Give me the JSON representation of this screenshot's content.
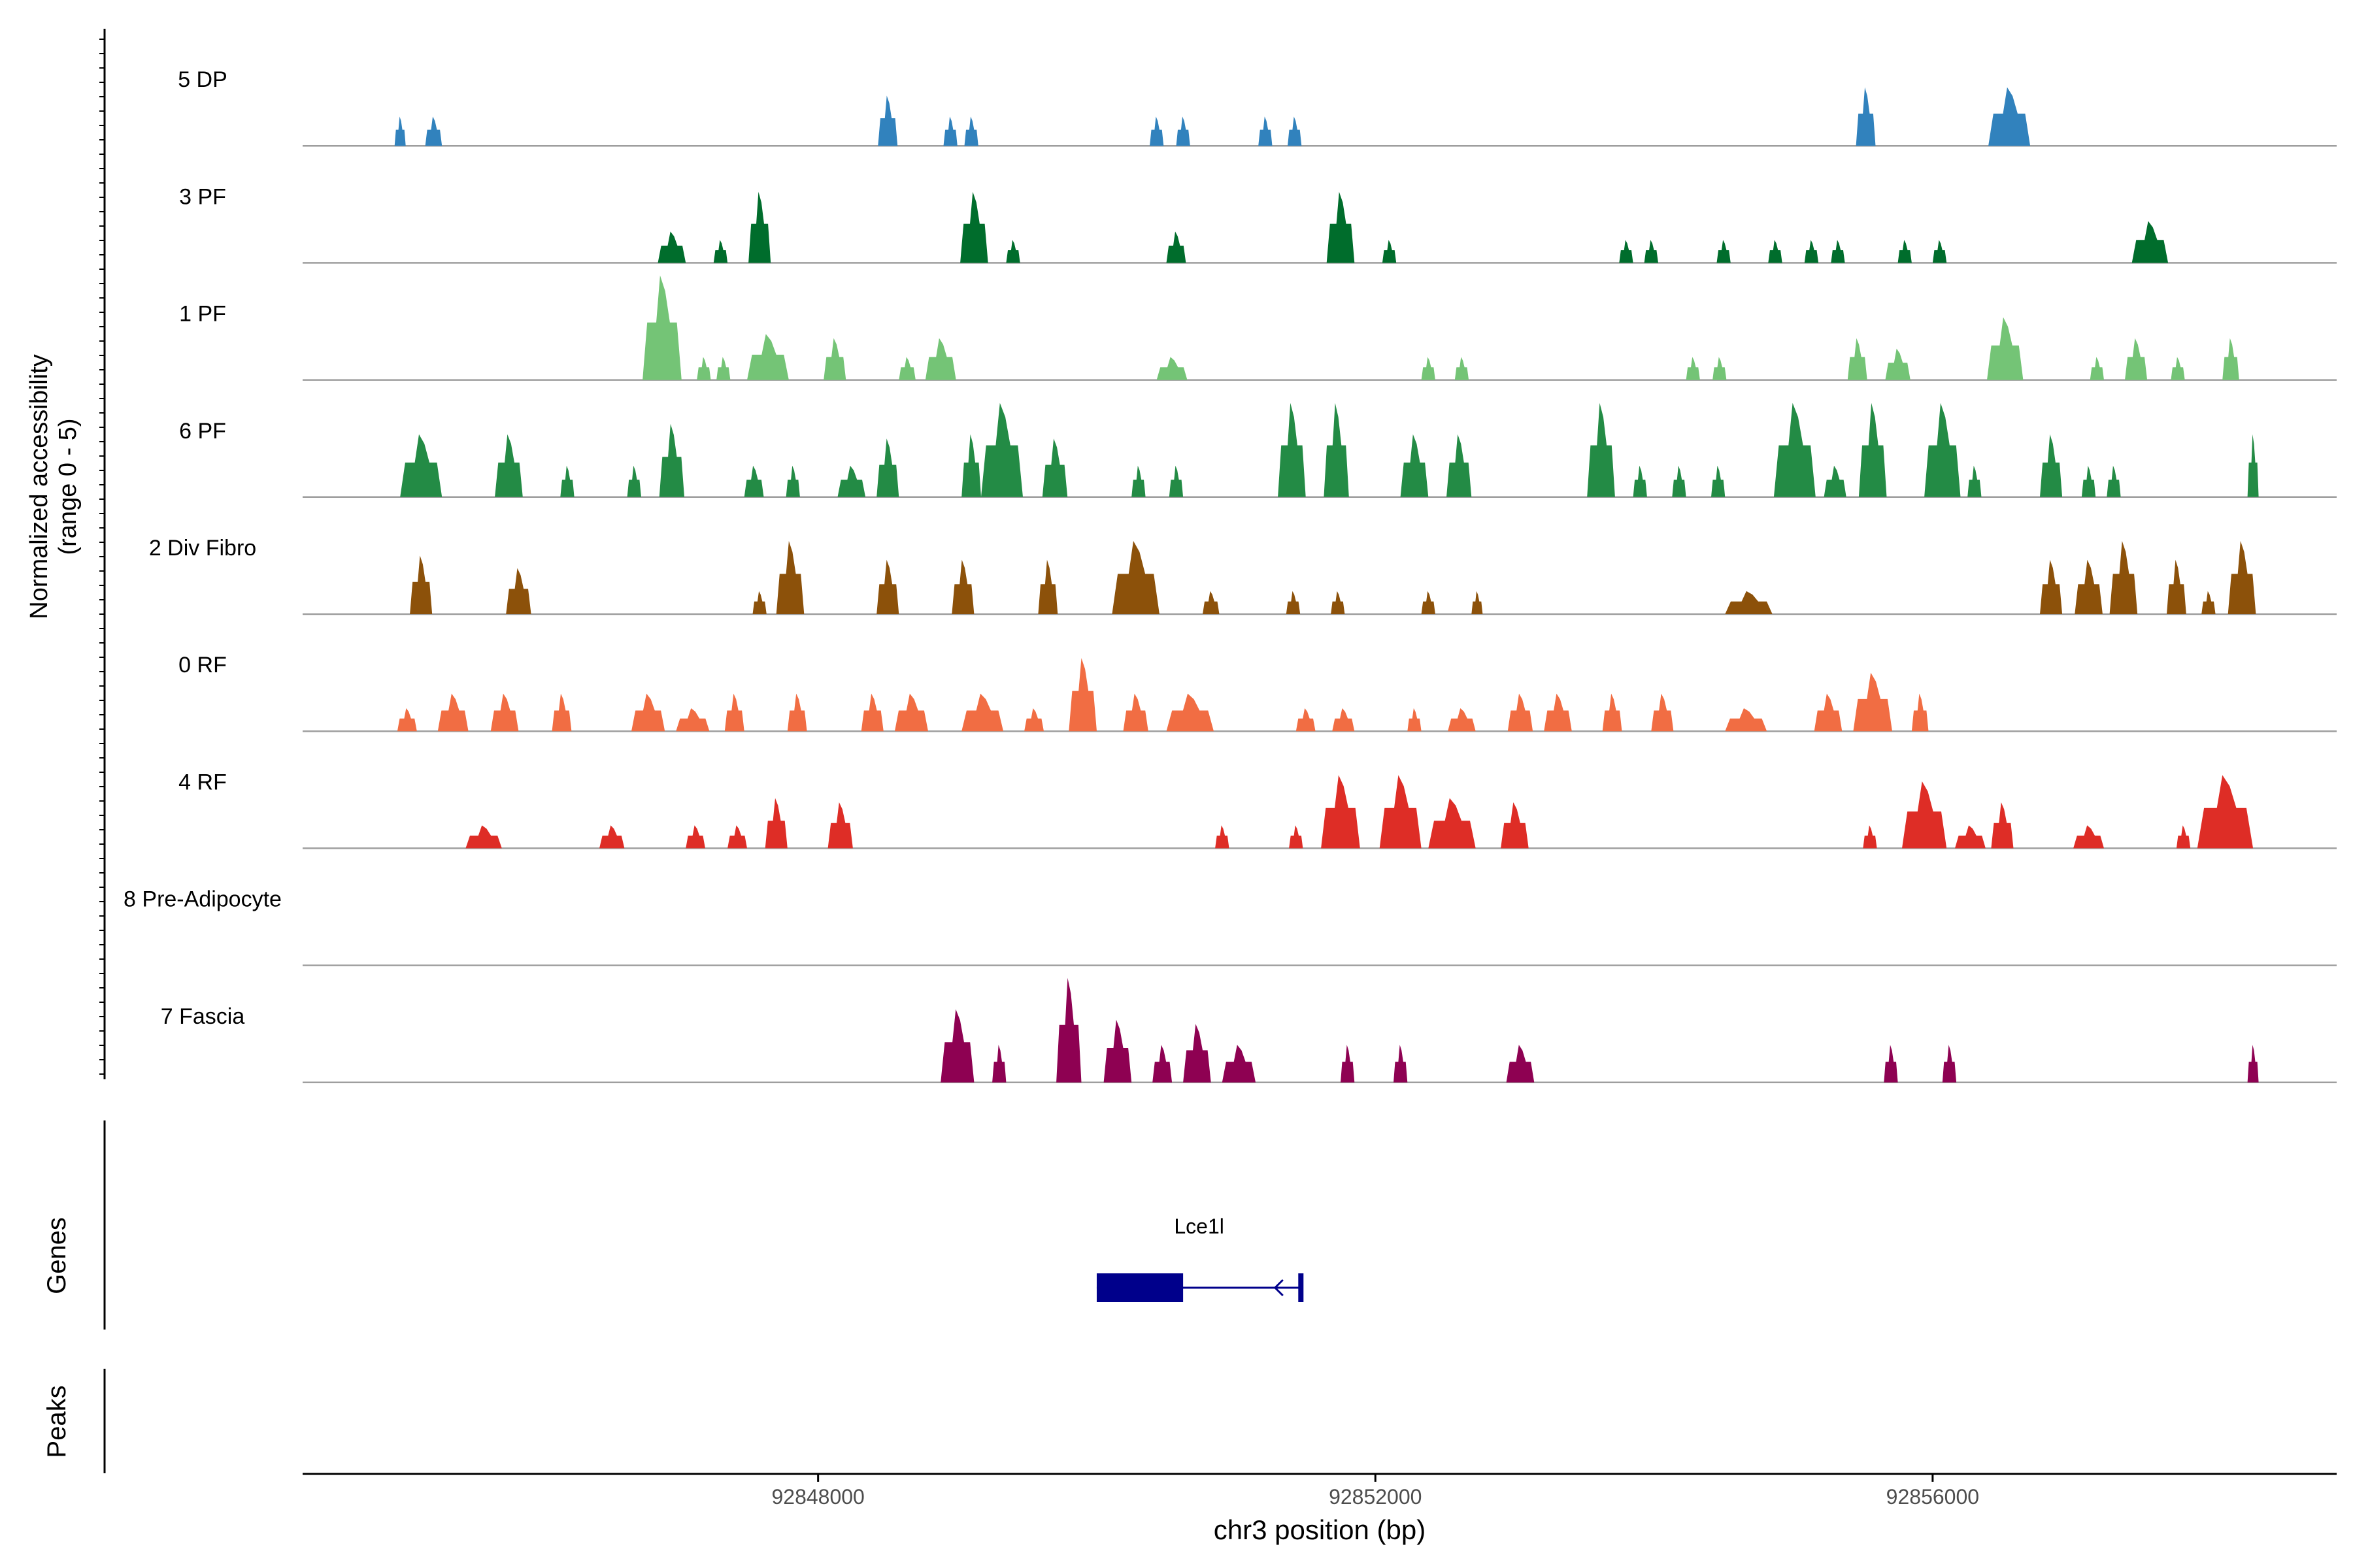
{
  "chart_data": {
    "type": "area",
    "title": "",
    "ylabel_line1": "Normalized accessibility",
    "ylabel_line2": "(range 0 - 5)",
    "xlabel": "chr3 position (bp)",
    "genes_label": "Genes",
    "peaks_label": "Peaks",
    "xlim": [
      92844300,
      92858900
    ],
    "ylim": [
      0,
      5
    ],
    "x_ticks": [
      92848000,
      92852000,
      92856000
    ],
    "x_tick_labels": [
      "92848000",
      "92852000",
      "92856000"
    ],
    "tracks": [
      {
        "name": "5 DP",
        "color": "#3182bd",
        "peaks": [
          [
            92845000,
            80,
            1.4
          ],
          [
            92845240,
            120,
            1.4
          ],
          [
            92848500,
            140,
            2.4
          ],
          [
            92848950,
            100,
            1.4
          ],
          [
            92849100,
            100,
            1.4
          ],
          [
            92850430,
            100,
            1.4
          ],
          [
            92850620,
            100,
            1.4
          ],
          [
            92851210,
            100,
            1.4
          ],
          [
            92851420,
            100,
            1.4
          ],
          [
            92855520,
            140,
            2.8
          ],
          [
            92856550,
            300,
            2.8
          ]
        ]
      },
      {
        "name": "3 PF",
        "color": "#006d2c",
        "peaks": [
          [
            92846950,
            200,
            1.5
          ],
          [
            92847300,
            100,
            1.1
          ],
          [
            92847580,
            160,
            3.4
          ],
          [
            92849120,
            200,
            3.4
          ],
          [
            92849400,
            100,
            1.1
          ],
          [
            92850570,
            140,
            1.5
          ],
          [
            92851750,
            200,
            3.4
          ],
          [
            92852100,
            100,
            1.1
          ],
          [
            92853800,
            100,
            1.1
          ],
          [
            92853980,
            100,
            1.1
          ],
          [
            92854500,
            100,
            1.1
          ],
          [
            92854870,
            100,
            1.1
          ],
          [
            92855130,
            100,
            1.1
          ],
          [
            92855320,
            100,
            1.1
          ],
          [
            92855800,
            100,
            1.1
          ],
          [
            92856050,
            100,
            1.1
          ],
          [
            92857560,
            260,
            2.0
          ]
        ]
      },
      {
        "name": "1 PF",
        "color": "#74c476",
        "peaks": [
          [
            92846880,
            280,
            5.0
          ],
          [
            92847180,
            100,
            1.1
          ],
          [
            92847320,
            100,
            1.1
          ],
          [
            92847640,
            300,
            2.2
          ],
          [
            92848120,
            160,
            2.0
          ],
          [
            92848640,
            120,
            1.1
          ],
          [
            92848880,
            220,
            2.0
          ],
          [
            92850540,
            220,
            1.1
          ],
          [
            92852380,
            100,
            1.1
          ],
          [
            92852620,
            100,
            1.1
          ],
          [
            92854280,
            100,
            1.1
          ],
          [
            92854470,
            100,
            1.1
          ],
          [
            92855460,
            140,
            2.0
          ],
          [
            92855750,
            180,
            1.5
          ],
          [
            92856520,
            260,
            3.0
          ],
          [
            92857180,
            100,
            1.1
          ],
          [
            92857460,
            160,
            2.0
          ],
          [
            92857760,
            100,
            1.1
          ],
          [
            92858140,
            120,
            2.0
          ]
        ]
      },
      {
        "name": "6 PF",
        "color": "#238b45",
        "peaks": [
          [
            92845150,
            300,
            3.0
          ],
          [
            92845780,
            200,
            3.0
          ],
          [
            92846200,
            100,
            1.5
          ],
          [
            92846680,
            100,
            1.5
          ],
          [
            92846950,
            180,
            3.5
          ],
          [
            92847540,
            140,
            1.5
          ],
          [
            92847820,
            100,
            1.5
          ],
          [
            92848240,
            200,
            1.5
          ],
          [
            92848500,
            160,
            2.8
          ],
          [
            92849100,
            140,
            3.0
          ],
          [
            92849320,
            300,
            4.5
          ],
          [
            92849700,
            180,
            2.8
          ],
          [
            92850300,
            100,
            1.5
          ],
          [
            92850570,
            100,
            1.5
          ],
          [
            92851400,
            200,
            4.5
          ],
          [
            92851720,
            180,
            4.5
          ],
          [
            92852280,
            200,
            3.0
          ],
          [
            92852600,
            180,
            3.0
          ],
          [
            92853620,
            200,
            4.5
          ],
          [
            92853900,
            100,
            1.5
          ],
          [
            92854180,
            100,
            1.5
          ],
          [
            92854460,
            100,
            1.5
          ],
          [
            92855010,
            300,
            4.5
          ],
          [
            92855300,
            160,
            1.5
          ],
          [
            92855570,
            200,
            4.5
          ],
          [
            92856070,
            260,
            4.5
          ],
          [
            92856300,
            100,
            1.5
          ],
          [
            92856850,
            160,
            3.0
          ],
          [
            92857120,
            100,
            1.5
          ],
          [
            92857300,
            100,
            1.5
          ],
          [
            92858300,
            80,
            3.0
          ]
        ]
      },
      {
        "name": "2 Div Fibro",
        "color": "#8c510a",
        "peaks": [
          [
            92845150,
            160,
            2.8
          ],
          [
            92845850,
            180,
            2.2
          ],
          [
            92847580,
            100,
            1.1
          ],
          [
            92847800,
            200,
            3.5
          ],
          [
            92848500,
            160,
            2.6
          ],
          [
            92849040,
            160,
            2.6
          ],
          [
            92849650,
            140,
            2.6
          ],
          [
            92850280,
            340,
            3.5
          ],
          [
            92850820,
            120,
            1.1
          ],
          [
            92851410,
            100,
            1.1
          ],
          [
            92851730,
            100,
            1.1
          ],
          [
            92852380,
            100,
            1.1
          ],
          [
            92852730,
            80,
            1.1
          ],
          [
            92854680,
            340,
            1.1
          ],
          [
            92856850,
            160,
            2.6
          ],
          [
            92857120,
            200,
            2.6
          ],
          [
            92857370,
            200,
            3.5
          ],
          [
            92857750,
            140,
            2.6
          ],
          [
            92857980,
            100,
            1.1
          ],
          [
            92858220,
            200,
            3.5
          ]
        ]
      },
      {
        "name": "0 RF",
        "color": "#f16d43",
        "peaks": [
          [
            92845050,
            140,
            1.1
          ],
          [
            92845380,
            220,
            1.8
          ],
          [
            92845750,
            200,
            1.8
          ],
          [
            92846160,
            140,
            1.8
          ],
          [
            92846780,
            240,
            1.8
          ],
          [
            92847100,
            240,
            1.1
          ],
          [
            92847400,
            140,
            1.8
          ],
          [
            92847850,
            140,
            1.8
          ],
          [
            92848390,
            160,
            1.8
          ],
          [
            92848670,
            240,
            1.8
          ],
          [
            92849180,
            300,
            1.8
          ],
          [
            92849550,
            140,
            1.1
          ],
          [
            92849900,
            200,
            3.5
          ],
          [
            92850280,
            180,
            1.8
          ],
          [
            92850670,
            340,
            1.8
          ],
          [
            92851500,
            140,
            1.1
          ],
          [
            92851770,
            160,
            1.1
          ],
          [
            92852280,
            100,
            1.1
          ],
          [
            92852620,
            200,
            1.1
          ],
          [
            92853040,
            180,
            1.8
          ],
          [
            92853310,
            200,
            1.8
          ],
          [
            92853700,
            140,
            1.8
          ],
          [
            92854060,
            160,
            1.8
          ],
          [
            92854660,
            300,
            1.1
          ],
          [
            92855250,
            200,
            1.8
          ],
          [
            92855570,
            280,
            2.8
          ],
          [
            92855910,
            120,
            1.8
          ]
        ]
      },
      {
        "name": "4 RF",
        "color": "#de2d26",
        "peaks": [
          [
            92845600,
            260,
            1.1
          ],
          [
            92846520,
            180,
            1.1
          ],
          [
            92847120,
            140,
            1.1
          ],
          [
            92847420,
            140,
            1.1
          ],
          [
            92847700,
            160,
            2.4
          ],
          [
            92848160,
            180,
            2.2
          ],
          [
            92850900,
            100,
            1.1
          ],
          [
            92851430,
            100,
            1.1
          ],
          [
            92851750,
            280,
            3.5
          ],
          [
            92852180,
            300,
            3.5
          ],
          [
            92852550,
            340,
            2.4
          ],
          [
            92853000,
            200,
            2.2
          ],
          [
            92855550,
            100,
            1.1
          ],
          [
            92855940,
            320,
            3.2
          ],
          [
            92856270,
            220,
            1.1
          ],
          [
            92856500,
            160,
            2.2
          ],
          [
            92857120,
            220,
            1.1
          ],
          [
            92857800,
            100,
            1.1
          ],
          [
            92858100,
            400,
            3.5
          ]
        ]
      },
      {
        "name": "8 Pre-Adipocyte",
        "color": "#54278f",
        "peaks": []
      },
      {
        "name": "7 Fascia",
        "color": "#8e0152",
        "peaks": [
          [
            92849000,
            240,
            3.5
          ],
          [
            92849300,
            100,
            1.8
          ],
          [
            92849800,
            180,
            5.0
          ],
          [
            92850150,
            200,
            3.0
          ],
          [
            92850470,
            140,
            1.8
          ],
          [
            92850720,
            200,
            2.8
          ],
          [
            92851020,
            240,
            1.8
          ],
          [
            92851800,
            100,
            1.8
          ],
          [
            92852180,
            100,
            1.8
          ],
          [
            92853040,
            200,
            1.8
          ],
          [
            92855700,
            100,
            1.8
          ],
          [
            92856120,
            100,
            1.8
          ],
          [
            92858300,
            80,
            1.8
          ]
        ]
      }
    ],
    "genes": [
      {
        "name": "Lce1l",
        "color": "#00008b",
        "start": 92850000,
        "end": 92851470,
        "exon_start": 92850000,
        "exon_end": 92850620,
        "strand": "-"
      }
    ]
  }
}
